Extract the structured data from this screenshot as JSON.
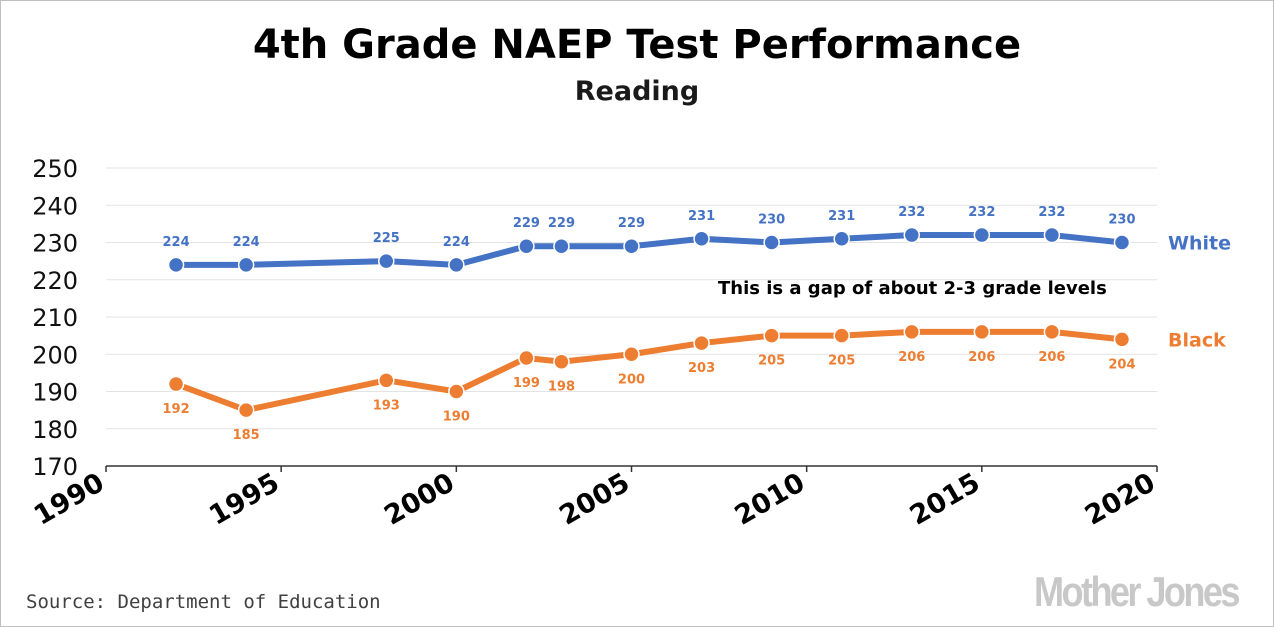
{
  "title": "4th Grade NAEP Test Performance",
  "subtitle": "Reading",
  "source": "Source: Department of Education",
  "logo_text": "Mother Jones",
  "chart_data": {
    "type": "line",
    "title": "4th Grade NAEP Test Performance",
    "subtitle": "Reading",
    "xlabel": "",
    "ylabel": "",
    "xlim": [
      1990,
      2020
    ],
    "ylim": [
      170,
      250
    ],
    "x_ticks": [
      1990,
      1995,
      2000,
      2005,
      2010,
      2015,
      2020
    ],
    "y_ticks": [
      170,
      180,
      190,
      200,
      210,
      220,
      230,
      240,
      250
    ],
    "grid": "horizontal",
    "legend_placement": "right-end labels",
    "x": [
      1992,
      1994,
      1998,
      2000,
      2002,
      2003,
      2005,
      2007,
      2009,
      2011,
      2013,
      2015,
      2017,
      2019
    ],
    "series": [
      {
        "name": "White",
        "color": "#4472c4",
        "values": [
          224,
          224,
          225,
          224,
          229,
          229,
          229,
          231,
          230,
          231,
          232,
          232,
          232,
          230
        ],
        "label_position": "above"
      },
      {
        "name": "Black",
        "color": "#ed7d31",
        "values": [
          192,
          185,
          193,
          190,
          199,
          198,
          200,
          203,
          205,
          205,
          206,
          206,
          206,
          204
        ],
        "label_position": "below"
      }
    ],
    "annotations": [
      {
        "text": "This is a gap of about 2-3 grade levels"
      }
    ]
  }
}
